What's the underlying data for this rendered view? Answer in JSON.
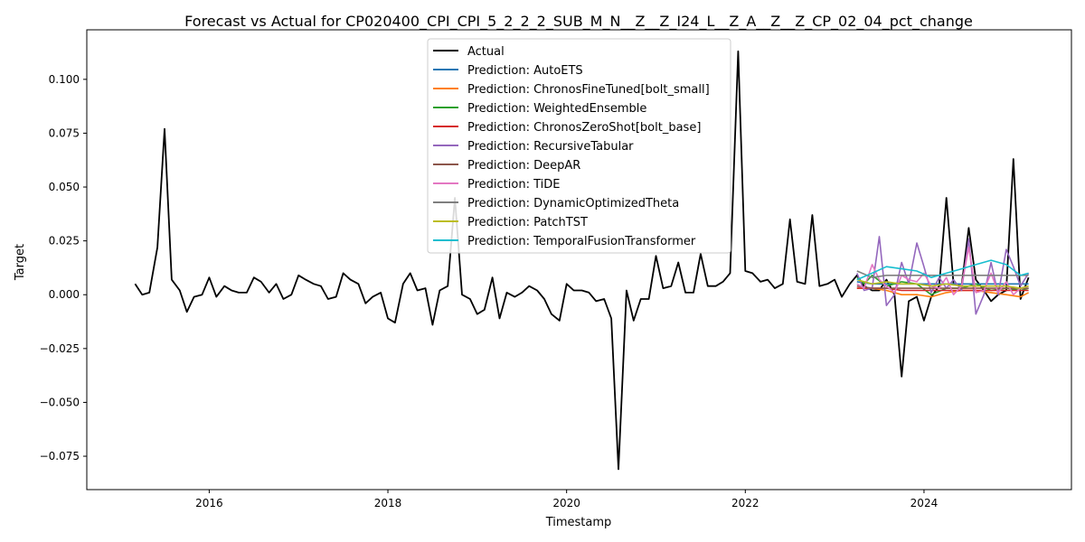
{
  "chart_data": {
    "type": "line",
    "title": "Forecast vs Actual for CP020400_CPI_CPI_5_2_2_2_SUB_M_N__Z__Z_I24_L__Z_A__Z__Z_CP_02_04_pct_change",
    "xlabel": "Timestamp",
    "ylabel": "Target",
    "xlim": [
      2014.63,
      2025.65
    ],
    "ylim": [
      -0.0905,
      0.123
    ],
    "xticks": [
      2016,
      2018,
      2020,
      2022,
      2024
    ],
    "yticks": [
      -0.075,
      -0.05,
      -0.025,
      0.0,
      0.025,
      0.05,
      0.075,
      0.1
    ],
    "ytick_labels": [
      "−0.075",
      "−0.050",
      "−0.025",
      "0.000",
      "0.025",
      "0.050",
      "0.075",
      "0.100"
    ],
    "grid": false,
    "legend_position": "upper center",
    "series": [
      {
        "name": "Actual",
        "color": "#000000",
        "x": [
          2015.17,
          2015.25,
          2015.33,
          2015.42,
          2015.5,
          2015.58,
          2015.67,
          2015.75,
          2015.83,
          2015.92,
          2016.0,
          2016.08,
          2016.17,
          2016.25,
          2016.33,
          2016.42,
          2016.5,
          2016.58,
          2016.67,
          2016.75,
          2016.83,
          2016.92,
          2017.0,
          2017.08,
          2017.17,
          2017.25,
          2017.33,
          2017.42,
          2017.5,
          2017.58,
          2017.67,
          2017.75,
          2017.83,
          2017.92,
          2018.0,
          2018.08,
          2018.17,
          2018.25,
          2018.33,
          2018.42,
          2018.5,
          2018.58,
          2018.67,
          2018.75,
          2018.83,
          2018.92,
          2019.0,
          2019.08,
          2019.17,
          2019.25,
          2019.33,
          2019.42,
          2019.5,
          2019.58,
          2019.67,
          2019.75,
          2019.83,
          2019.92,
          2020.0,
          2020.08,
          2020.17,
          2020.25,
          2020.33,
          2020.42,
          2020.5,
          2020.58,
          2020.67,
          2020.75,
          2020.83,
          2020.92,
          2021.0,
          2021.08,
          2021.17,
          2021.25,
          2021.33,
          2021.42,
          2021.5,
          2021.58,
          2021.67,
          2021.75,
          2021.83,
          2021.92,
          2022.0,
          2022.08,
          2022.17,
          2022.25,
          2022.33,
          2022.42,
          2022.5,
          2022.58,
          2022.67,
          2022.75,
          2022.83,
          2022.92,
          2023.0,
          2023.08,
          2023.17,
          2023.25,
          2023.33,
          2023.42,
          2023.5,
          2023.58,
          2023.67,
          2023.75,
          2023.83,
          2023.92,
          2024.0,
          2024.08,
          2024.17,
          2024.25,
          2024.33,
          2024.42,
          2024.5,
          2024.58,
          2024.67,
          2024.75,
          2024.83,
          2024.92,
          2025.0,
          2025.08,
          2025.17
        ],
        "y": [
          0.005,
          0.0,
          0.001,
          0.022,
          0.077,
          0.007,
          0.002,
          -0.008,
          -0.001,
          0.0,
          0.008,
          -0.001,
          0.004,
          0.002,
          0.001,
          0.001,
          0.008,
          0.006,
          0.001,
          0.005,
          -0.002,
          0.0,
          0.009,
          0.007,
          0.005,
          0.004,
          -0.002,
          -0.001,
          0.01,
          0.007,
          0.005,
          -0.004,
          -0.001,
          0.001,
          -0.011,
          -0.013,
          0.005,
          0.01,
          0.002,
          0.003,
          -0.014,
          0.002,
          0.004,
          0.045,
          0.0,
          -0.002,
          -0.009,
          -0.007,
          0.008,
          -0.011,
          0.001,
          -0.001,
          0.001,
          0.004,
          0.002,
          -0.002,
          -0.009,
          -0.012,
          0.005,
          0.002,
          0.002,
          0.001,
          -0.003,
          -0.002,
          -0.011,
          -0.081,
          0.002,
          -0.012,
          -0.002,
          -0.002,
          0.018,
          0.003,
          0.004,
          0.015,
          0.001,
          0.001,
          0.019,
          0.004,
          0.004,
          0.006,
          0.01,
          0.113,
          0.011,
          0.01,
          0.006,
          0.007,
          0.003,
          0.005,
          0.035,
          0.006,
          0.005,
          0.037,
          0.004,
          0.005,
          0.007,
          -0.001,
          0.005,
          0.009,
          0.004,
          0.002,
          0.002,
          0.007,
          0.0,
          -0.038,
          -0.003,
          -0.001,
          -0.012,
          -0.001,
          0.004,
          0.045,
          0.005,
          0.004,
          0.031,
          0.007,
          0.002,
          -0.003,
          0.0,
          0.002,
          0.063,
          -0.002,
          0.008
        ]
      },
      {
        "name": "Prediction: AutoETS",
        "color": "#1f77b4",
        "x": [
          2023.25,
          2023.42,
          2023.58,
          2023.75,
          2023.92,
          2024.08,
          2024.25,
          2024.42,
          2024.58,
          2024.75,
          2024.92,
          2025.08,
          2025.17
        ],
        "y": [
          0.006,
          0.005,
          0.005,
          0.005,
          0.005,
          0.005,
          0.005,
          0.005,
          0.005,
          0.005,
          0.005,
          0.005,
          0.005
        ]
      },
      {
        "name": "Prediction: ChronosFineTuned[bolt_small]",
        "color": "#ff7f0e",
        "x": [
          2023.25,
          2023.42,
          2023.58,
          2023.75,
          2023.92,
          2024.08,
          2024.25,
          2024.42,
          2024.58,
          2024.75,
          2024.92,
          2025.08,
          2025.17
        ],
        "y": [
          0.003,
          0.003,
          0.002,
          0.0,
          0.0,
          -0.001,
          0.001,
          0.002,
          0.002,
          0.001,
          0.0,
          -0.001,
          0.001
        ]
      },
      {
        "name": "Prediction: WeightedEnsemble",
        "color": "#2ca02c",
        "x": [
          2023.25,
          2023.33,
          2023.42,
          2023.58,
          2023.75,
          2023.92,
          2024.08,
          2024.25,
          2024.42,
          2024.58,
          2024.75,
          2024.92,
          2025.08,
          2025.17
        ],
        "y": [
          0.008,
          0.005,
          0.009,
          0.004,
          0.006,
          0.005,
          0.0,
          0.003,
          0.003,
          0.005,
          0.002,
          0.003,
          0.002,
          0.003
        ]
      },
      {
        "name": "Prediction: ChronosZeroShot[bolt_base]",
        "color": "#d62728",
        "x": [
          2023.25,
          2023.42,
          2023.58,
          2023.75,
          2023.92,
          2024.08,
          2024.25,
          2024.42,
          2024.58,
          2024.75,
          2024.92,
          2025.08,
          2025.17
        ],
        "y": [
          0.003,
          0.003,
          0.003,
          0.002,
          0.002,
          0.002,
          0.002,
          0.002,
          0.002,
          0.002,
          0.002,
          0.002,
          0.002
        ]
      },
      {
        "name": "Prediction: RecursiveTabular",
        "color": "#9467bd",
        "x": [
          2023.25,
          2023.33,
          2023.42,
          2023.5,
          2023.58,
          2023.67,
          2023.75,
          2023.83,
          2023.92,
          2024.0,
          2024.08,
          2024.17,
          2024.25,
          2024.33,
          2024.42,
          2024.5,
          2024.58,
          2024.67,
          2024.75,
          2024.83,
          2024.92,
          2025.0,
          2025.08,
          2025.17
        ],
        "y": [
          0.01,
          0.002,
          0.003,
          0.027,
          -0.005,
          0.0,
          0.015,
          0.005,
          0.024,
          0.013,
          0.001,
          0.008,
          0.003,
          0.007,
          0.002,
          0.026,
          -0.009,
          0.0,
          0.015,
          0.0,
          0.021,
          0.013,
          0.004,
          0.01
        ]
      },
      {
        "name": "Prediction: DeepAR",
        "color": "#8c564b",
        "x": [
          2023.25,
          2023.42,
          2023.58,
          2023.75,
          2023.92,
          2024.08,
          2024.25,
          2024.42,
          2024.58,
          2024.75,
          2024.92,
          2025.08,
          2025.17
        ],
        "y": [
          0.004,
          0.003,
          0.003,
          0.003,
          0.003,
          0.003,
          0.003,
          0.003,
          0.003,
          0.003,
          0.003,
          0.003,
          0.003
        ]
      },
      {
        "name": "Prediction: TiDE",
        "color": "#e377c2",
        "x": [
          2023.25,
          2023.33,
          2023.42,
          2023.5,
          2023.58,
          2023.67,
          2023.75,
          2023.83,
          2023.92,
          2024.0,
          2024.08,
          2024.17,
          2024.25,
          2024.33,
          2024.42,
          2024.5,
          2024.58,
          2024.67,
          2024.75,
          2024.83,
          2024.92,
          2025.0,
          2025.08,
          2025.17
        ],
        "y": [
          0.005,
          0.003,
          0.014,
          0.007,
          0.004,
          0.001,
          0.009,
          0.007,
          0.006,
          0.01,
          0.004,
          0.003,
          0.008,
          0.0,
          0.004,
          0.022,
          0.001,
          0.002,
          0.01,
          0.001,
          0.006,
          0.0,
          0.003,
          0.004
        ]
      },
      {
        "name": "Prediction: DynamicOptimizedTheta",
        "color": "#7f7f7f",
        "x": [
          2023.25,
          2023.42,
          2023.58,
          2023.75,
          2023.92,
          2024.08,
          2024.25,
          2024.42,
          2024.58,
          2024.75,
          2024.92,
          2025.08,
          2025.17
        ],
        "y": [
          0.011,
          0.008,
          0.009,
          0.009,
          0.009,
          0.009,
          0.009,
          0.009,
          0.009,
          0.009,
          0.009,
          0.009,
          0.009
        ]
      },
      {
        "name": "Prediction: PatchTST",
        "color": "#bcbd22",
        "x": [
          2023.25,
          2023.42,
          2023.58,
          2023.75,
          2023.92,
          2024.08,
          2024.25,
          2024.42,
          2024.58,
          2024.75,
          2024.92,
          2025.08,
          2025.17
        ],
        "y": [
          0.007,
          0.005,
          0.006,
          0.005,
          0.005,
          0.004,
          0.005,
          0.004,
          0.004,
          0.004,
          0.004,
          0.003,
          0.004
        ]
      },
      {
        "name": "Prediction: TemporalFusionTransformer",
        "color": "#17becf",
        "x": [
          2023.25,
          2023.42,
          2023.58,
          2023.75,
          2023.92,
          2024.08,
          2024.25,
          2024.42,
          2024.58,
          2024.75,
          2024.92,
          2025.08,
          2025.17
        ],
        "y": [
          0.007,
          0.01,
          0.013,
          0.012,
          0.011,
          0.008,
          0.01,
          0.012,
          0.014,
          0.016,
          0.014,
          0.009,
          0.01
        ]
      }
    ]
  }
}
